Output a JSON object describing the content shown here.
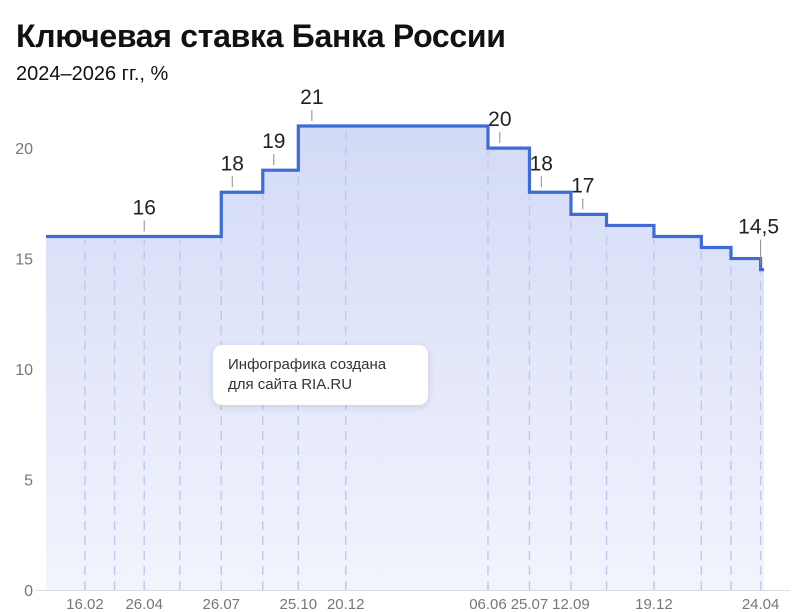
{
  "title": "Ключевая ставка Банка России",
  "subtitle": "2024–2026 гг., %",
  "watermark": {
    "line1": "Инфографика создана",
    "line2": "для сайта RIA.RU"
  },
  "colors": {
    "line": "#3e6bd6",
    "fill_top": "#d3daf6",
    "fill_bottom": "#f2f4fd",
    "dash": "#bfc8f0",
    "axis_text": "#777777",
    "label_text": "#222222"
  },
  "chart_data": {
    "type": "line",
    "step": true,
    "title": "Ключевая ставка Банка России",
    "subtitle": "2024–2026 гг., %",
    "xlabel": "",
    "ylabel": "",
    "ylim": [
      0,
      21
    ],
    "yticks": [
      0,
      5,
      10,
      15,
      20
    ],
    "grid": false,
    "x_start": "2024-01-01",
    "points": [
      {
        "date": "2024-01-01",
        "rate": 16
      },
      {
        "date": "2024-07-26",
        "rate": 18
      },
      {
        "date": "2024-09-13",
        "rate": 19
      },
      {
        "date": "2024-10-25",
        "rate": 21
      },
      {
        "date": "2025-06-06",
        "rate": 20
      },
      {
        "date": "2025-07-25",
        "rate": 18
      },
      {
        "date": "2025-09-12",
        "rate": 17
      },
      {
        "date": "2025-10-24",
        "rate": 16.5
      },
      {
        "date": "2025-12-19",
        "rate": 16
      },
      {
        "date": "2026-02-13",
        "rate": 15.5
      },
      {
        "date": "2026-03-20",
        "rate": 15
      },
      {
        "date": "2026-04-24",
        "rate": 14.5
      }
    ],
    "x_end": "2026-04-28",
    "meeting_dates": [
      "2024-02-16",
      "2024-03-22",
      "2024-04-26",
      "2024-06-07",
      "2024-07-26",
      "2024-09-13",
      "2024-10-25",
      "2024-12-20",
      "2025-06-06",
      "2025-07-25",
      "2025-09-12",
      "2025-10-24",
      "2025-12-19",
      "2026-02-13",
      "2026-03-20",
      "2026-04-24"
    ],
    "x_tick_labels": [
      {
        "date": "2024-02-16",
        "label": "16.02"
      },
      {
        "date": "2024-04-26",
        "label": "26.04"
      },
      {
        "date": "2024-07-26",
        "label": "26.07"
      },
      {
        "date": "2024-10-25",
        "label": "25.10"
      },
      {
        "date": "2024-12-20",
        "label": "20.12"
      },
      {
        "date": "2025-06-06",
        "label": "06.06"
      },
      {
        "date": "2025-07-25",
        "label": "25.07"
      },
      {
        "date": "2025-09-12",
        "label": "12.09"
      },
      {
        "date": "2025-12-19",
        "label": "19.12"
      },
      {
        "date": "2026-04-24",
        "label": "24.04"
      }
    ],
    "annotations": [
      {
        "date": "2024-04-26",
        "rate": 16,
        "label": "16"
      },
      {
        "date": "2024-08-08",
        "rate": 18,
        "label": "18"
      },
      {
        "date": "2024-09-26",
        "rate": 19,
        "label": "19"
      },
      {
        "date": "2024-11-10",
        "rate": 21,
        "label": "21"
      },
      {
        "date": "2025-06-20",
        "rate": 20,
        "label": "20"
      },
      {
        "date": "2025-08-08",
        "rate": 18,
        "label": "18"
      },
      {
        "date": "2025-09-26",
        "rate": 17,
        "label": "17"
      },
      {
        "date": "2026-04-24",
        "rate": 14.5,
        "label": "14,5"
      }
    ]
  }
}
